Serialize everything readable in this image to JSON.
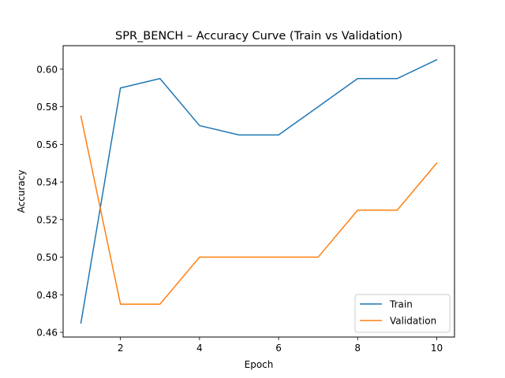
{
  "chart_data": {
    "type": "line",
    "title": "SPR_BENCH – Accuracy Curve (Train vs Validation)",
    "xlabel": "Epoch",
    "ylabel": "Accuracy",
    "x": [
      1,
      2,
      3,
      4,
      5,
      6,
      7,
      8,
      9,
      10
    ],
    "xlim": [
      0.55,
      10.45
    ],
    "ylim": [
      0.4575,
      0.6125
    ],
    "xticks": [
      2,
      4,
      6,
      8,
      10
    ],
    "yticks": [
      0.46,
      0.48,
      0.5,
      0.52,
      0.54,
      0.56,
      0.58,
      0.6
    ],
    "ytick_labels": [
      "0.46",
      "0.48",
      "0.50",
      "0.52",
      "0.54",
      "0.56",
      "0.58",
      "0.60"
    ],
    "grid": false,
    "legend_position": "lower-right",
    "series": [
      {
        "name": "Train",
        "color": "#1f77b4",
        "values": [
          0.465,
          0.59,
          0.595,
          0.57,
          0.565,
          0.565,
          0.58,
          0.595,
          0.595,
          0.605
        ]
      },
      {
        "name": "Validation",
        "color": "#ff7f0e",
        "values": [
          0.575,
          0.475,
          0.475,
          0.5,
          0.5,
          0.5,
          0.5,
          0.525,
          0.525,
          0.55
        ]
      }
    ]
  }
}
